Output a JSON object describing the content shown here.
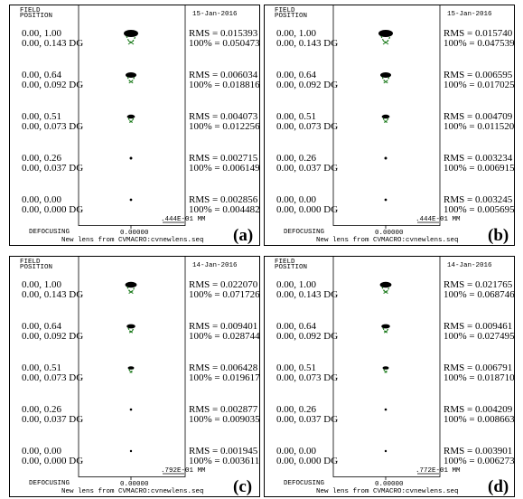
{
  "panels": [
    {
      "label": "(a)",
      "date": "15-Jan-2016",
      "header": [
        "FIELD",
        "POSITION"
      ],
      "rows": [
        {
          "field": "0.00, 1.00",
          "angle": "0.00, 0.143 DG",
          "rms": "RMS = 0.015393",
          "pct": "100% = 0.050473"
        },
        {
          "field": "0.00, 0.64",
          "angle": "0.00, 0.092 DG",
          "rms": "RMS = 0.006034",
          "pct": "100% = 0.018816"
        },
        {
          "field": "0.00, 0.51",
          "angle": "0.00, 0.073 DG",
          "rms": "RMS = 0.004073",
          "pct": "100% = 0.012256"
        },
        {
          "field": "0.00, 0.26",
          "angle": "0.00, 0.037 DG",
          "rms": "RMS = 0.002715",
          "pct": "100% = 0.006149"
        },
        {
          "field": "0.00, 0.00",
          "angle": "0.00, 0.000 DG",
          "rms": "RMS = 0.002856",
          "pct": "100% = 0.004482"
        }
      ],
      "defocusing": "DEFOCUSING",
      "defocus_value": "0.00000",
      "scale": ".444E-01 MM",
      "footer": "New lens from CVMACRO:cvnewlens.seq"
    },
    {
      "label": "(b)",
      "date": "15-Jan-2016",
      "header": [
        "FIELD",
        "POSITION"
      ],
      "rows": [
        {
          "field": "0.00, 1.00",
          "angle": "0.00, 0.143 DG",
          "rms": "RMS = 0.015740",
          "pct": "100% = 0.047539"
        },
        {
          "field": "0.00, 0.64",
          "angle": "0.00, 0.092 DG",
          "rms": "RMS = 0.006595",
          "pct": "100% = 0.017025"
        },
        {
          "field": "0.00, 0.51",
          "angle": "0.00, 0.073 DG",
          "rms": "RMS = 0.004709",
          "pct": "100% = 0.011520"
        },
        {
          "field": "0.00, 0.26",
          "angle": "0.00, 0.037 DG",
          "rms": "RMS = 0.003234",
          "pct": "100% = 0.006915"
        },
        {
          "field": "0.00, 0.00",
          "angle": "0.00, 0.000 DG",
          "rms": "RMS = 0.003245",
          "pct": "100% = 0.005695"
        }
      ],
      "defocusing": "DEFOCUSING",
      "defocus_value": "0.00000",
      "scale": ".444E-01 MM",
      "footer": "New lens from CVMACRO:cvnewlens.seq"
    },
    {
      "label": "(c)",
      "date": "14-Jan-2016",
      "header": [
        "FIELD",
        "POSITION"
      ],
      "rows": [
        {
          "field": "0.00, 1.00",
          "angle": "0.00, 0.143 DG",
          "rms": "RMS = 0.022070",
          "pct": "100% = 0.071726"
        },
        {
          "field": "0.00, 0.64",
          "angle": "0.00, 0.092 DG",
          "rms": "RMS = 0.009401",
          "pct": "100% = 0.028744"
        },
        {
          "field": "0.00, 0.51",
          "angle": "0.00, 0.073 DG",
          "rms": "RMS = 0.006428",
          "pct": "100% = 0.019617"
        },
        {
          "field": "0.00, 0.26",
          "angle": "0.00, 0.037 DG",
          "rms": "RMS = 0.002877",
          "pct": "100% = 0.009035"
        },
        {
          "field": "0.00, 0.00",
          "angle": "0.00, 0.000 DG",
          "rms": "RMS = 0.001945",
          "pct": "100% = 0.003611"
        }
      ],
      "defocusing": "DEFOCUSING",
      "defocus_value": "0.00000",
      "scale": ".792E-01 MM",
      "footer": "New lens from CVMACRO:cvnewlens.seq"
    },
    {
      "label": "(d)",
      "date": "14-Jan-2016",
      "header": [
        "FIELD",
        "POSITION"
      ],
      "rows": [
        {
          "field": "0.00, 1.00",
          "angle": "0.00, 0.143 DG",
          "rms": "RMS = 0.021765",
          "pct": "100% = 0.068746"
        },
        {
          "field": "0.00, 0.64",
          "angle": "0.00, 0.092 DG",
          "rms": "RMS = 0.009461",
          "pct": "100% = 0.027495"
        },
        {
          "field": "0.00, 0.51",
          "angle": "0.00, 0.073 DG",
          "rms": "RMS = 0.006791",
          "pct": "100% = 0.018710"
        },
        {
          "field": "0.00, 0.26",
          "angle": "0.00, 0.037 DG",
          "rms": "RMS = 0.004209",
          "pct": "100% = 0.008663"
        },
        {
          "field": "0.00, 0.00",
          "angle": "0.00, 0.000 DG",
          "rms": "RMS = 0.003901",
          "pct": "100% = 0.006273"
        }
      ],
      "defocusing": "DEFOCUSING",
      "defocus_value": "0.00000",
      "scale": ".772E-01 MM",
      "footer": "New lens from CVMACRO:cvnewlens.seq"
    }
  ]
}
